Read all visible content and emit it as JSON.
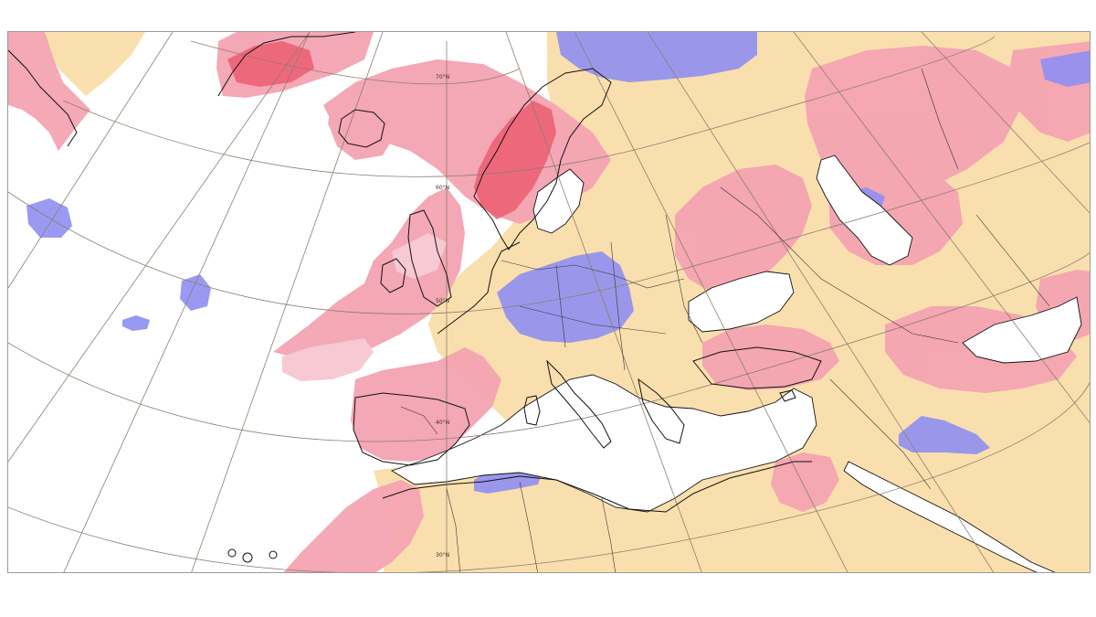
{
  "map": {
    "latitude_labels": {
      "lat70": "70°N",
      "lat60": "60°N",
      "lat50": "50°N",
      "lat40": "40°N",
      "lat30": "30°N"
    },
    "colors": {
      "background": "#ffffff",
      "warm_anomaly_light": "#f7c9d2",
      "warm_anomaly_medium": "#f4a3b2",
      "warm_anomaly_strong": "#ec5d72",
      "cool_anomaly": "#8f8ff2",
      "neutral_land": "#fadfae",
      "coastline": "#111111",
      "graticule": "#8b7e6e"
    },
    "features": {
      "graticule": "graticule",
      "coastlines": "coastline",
      "borders": "country-borders"
    }
  }
}
